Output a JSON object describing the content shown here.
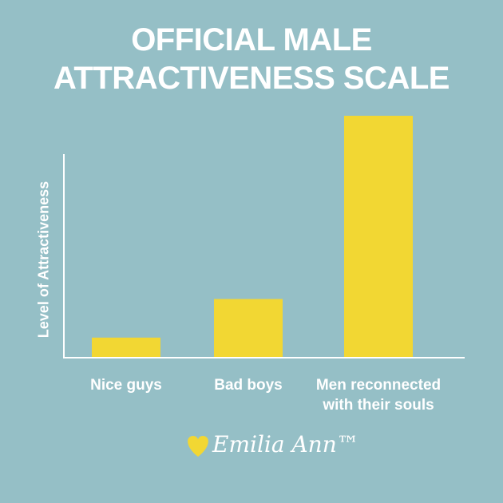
{
  "chart_data": {
    "type": "bar",
    "title": "OFFICIAL MALE ATTRACTIVENESS SCALE",
    "y_label": "Level of Attractiveness",
    "categories": [
      "Nice guys",
      "Bad boys",
      "Men reconnected with their souls"
    ],
    "values": [
      8,
      24,
      100
    ],
    "color": "#f2d733",
    "ylim": [
      0,
      100
    ],
    "logo": "Emilia Ann™"
  }
}
